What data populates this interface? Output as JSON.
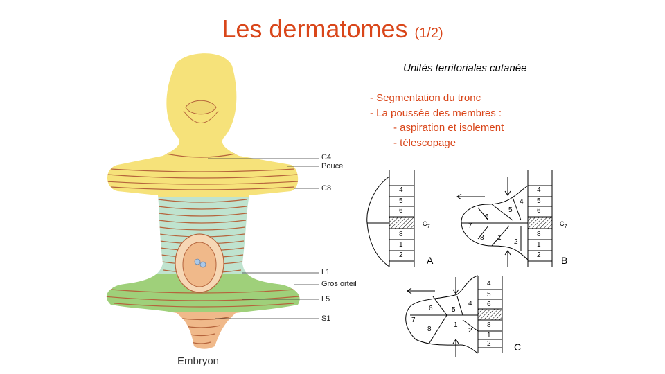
{
  "slide": {
    "title": "Les dermatomes",
    "title_suffix": "(1/2)",
    "subtitle": "Unités territoriales cutanée",
    "bullets": [
      "- Segmentation du tronc",
      "- La poussée des membres :",
      "- aspiration et isolement",
      "- télescopage"
    ],
    "embryo_caption": "Embryon"
  },
  "embryo_labels": [
    "C4",
    "Pouce",
    "C8",
    "L1",
    "Gros orteil",
    "L5",
    "S1"
  ],
  "diagrams": {
    "A": {
      "label": "A",
      "numbers": [
        "4",
        "5",
        "6",
        "8",
        "1",
        "2"
      ],
      "marker": "C",
      "marker_sub": "7"
    },
    "B": {
      "label": "B",
      "numbers": [
        "4",
        "5",
        "6",
        "8",
        "1",
        "2"
      ],
      "limb_numbers": [
        "4",
        "5",
        "6",
        "7",
        "8",
        "1",
        "2"
      ],
      "marker": "C",
      "marker_sub": "7"
    },
    "C": {
      "label": "C",
      "numbers": [
        "4",
        "5",
        "6",
        "8",
        "1",
        "2"
      ],
      "limb_numbers": [
        "4",
        "5",
        "6",
        "7",
        "8",
        "1",
        "2"
      ]
    }
  },
  "colors": {
    "title": "#d9461a",
    "head_yellow": "#f6e27a",
    "trunk_cyan": "#bfe3cf",
    "leg_green": "#9fd07a",
    "sacral_orange": "#f0b98a",
    "line": "#b5643c"
  }
}
